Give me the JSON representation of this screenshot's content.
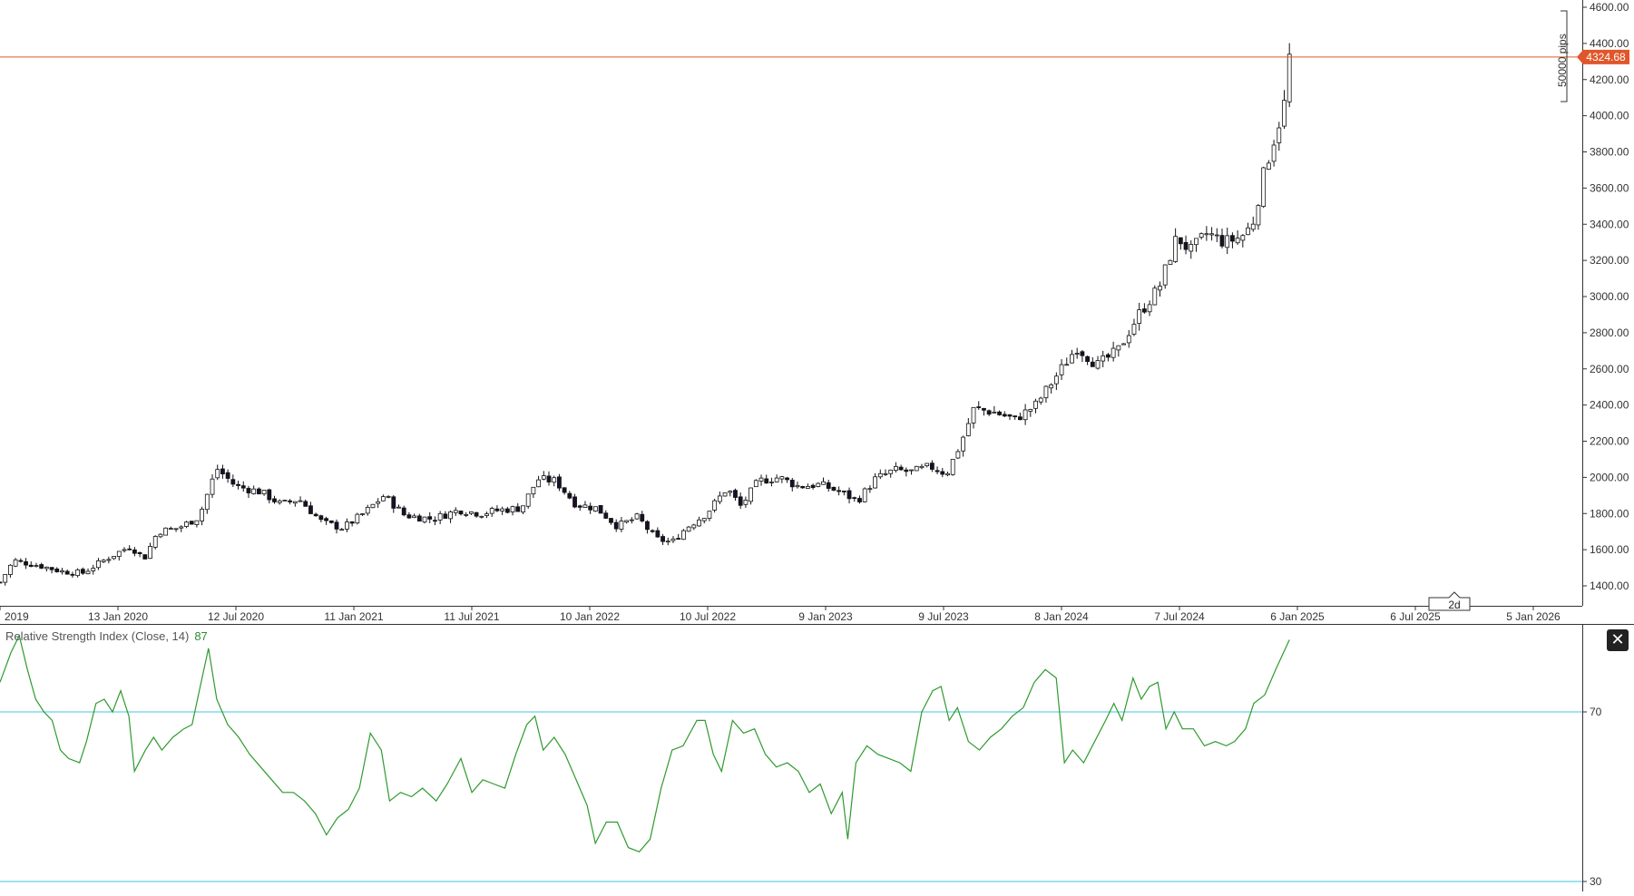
{
  "chart_data": [
    {
      "type": "candlestick",
      "title": "",
      "ylim": [
        1300,
        4620
      ],
      "y_ticks": [
        "1400.00",
        "1600.00",
        "1800.00",
        "2000.00",
        "2200.00",
        "2400.00",
        "2600.00",
        "2800.00",
        "3000.00",
        "3200.00",
        "3400.00",
        "3600.00",
        "3800.00",
        "4000.00",
        "4200.00",
        "4400.00",
        "4600.00"
      ],
      "x_ticks": [
        "2019",
        "13 Jan 2020",
        "12 Jul 2020",
        "11 Jan 2021",
        "11 Jul 2021",
        "10 Jan 2022",
        "10 Jul 2022",
        "9 Jan 2023",
        "9 Jul 2023",
        "8 Jan 2024",
        "7 Jul 2024",
        "6 Jan 2025",
        "6 Jul 2025",
        "5 Jan 2026"
      ],
      "timeframe": "2d",
      "current_price": 4324.68,
      "current_price_label": "4324.68",
      "range_label": "50000 pips",
      "close_path": [
        {
          "t": 0.0,
          "v": 1420
        },
        {
          "t": 0.01,
          "v": 1540
        },
        {
          "t": 0.03,
          "v": 1510
        },
        {
          "t": 0.045,
          "v": 1480
        },
        {
          "t": 0.06,
          "v": 1470
        },
        {
          "t": 0.08,
          "v": 1560
        },
        {
          "t": 0.095,
          "v": 1620
        },
        {
          "t": 0.105,
          "v": 1550
        },
        {
          "t": 0.115,
          "v": 1700
        },
        {
          "t": 0.13,
          "v": 1720
        },
        {
          "t": 0.145,
          "v": 1780
        },
        {
          "t": 0.158,
          "v": 2050
        },
        {
          "t": 0.172,
          "v": 1950
        },
        {
          "t": 0.19,
          "v": 1920
        },
        {
          "t": 0.205,
          "v": 1850
        },
        {
          "t": 0.218,
          "v": 1880
        },
        {
          "t": 0.235,
          "v": 1750
        },
        {
          "t": 0.25,
          "v": 1720
        },
        {
          "t": 0.265,
          "v": 1800
        },
        {
          "t": 0.28,
          "v": 1900
        },
        {
          "t": 0.295,
          "v": 1790
        },
        {
          "t": 0.315,
          "v": 1770
        },
        {
          "t": 0.335,
          "v": 1820
        },
        {
          "t": 0.35,
          "v": 1800
        },
        {
          "t": 0.365,
          "v": 1820
        },
        {
          "t": 0.38,
          "v": 1830
        },
        {
          "t": 0.392,
          "v": 1990
        },
        {
          "t": 0.405,
          "v": 1980
        },
        {
          "t": 0.42,
          "v": 1850
        },
        {
          "t": 0.435,
          "v": 1830
        },
        {
          "t": 0.45,
          "v": 1730
        },
        {
          "t": 0.465,
          "v": 1780
        },
        {
          "t": 0.478,
          "v": 1660
        },
        {
          "t": 0.49,
          "v": 1640
        },
        {
          "t": 0.5,
          "v": 1720
        },
        {
          "t": 0.515,
          "v": 1800
        },
        {
          "t": 0.53,
          "v": 1940
        },
        {
          "t": 0.54,
          "v": 1840
        },
        {
          "t": 0.553,
          "v": 1980
        },
        {
          "t": 0.568,
          "v": 2000
        },
        {
          "t": 0.582,
          "v": 1950
        },
        {
          "t": 0.598,
          "v": 1960
        },
        {
          "t": 0.612,
          "v": 1920
        },
        {
          "t": 0.625,
          "v": 1870
        },
        {
          "t": 0.638,
          "v": 1990
        },
        {
          "t": 0.652,
          "v": 2040
        },
        {
          "t": 0.665,
          "v": 2030
        },
        {
          "t": 0.678,
          "v": 2060
        },
        {
          "t": 0.69,
          "v": 2020
        },
        {
          "t": 0.7,
          "v": 2180
        },
        {
          "t": 0.71,
          "v": 2380
        },
        {
          "t": 0.725,
          "v": 2360
        },
        {
          "t": 0.74,
          "v": 2320
        },
        {
          "t": 0.755,
          "v": 2400
        },
        {
          "t": 0.77,
          "v": 2560
        },
        {
          "t": 0.785,
          "v": 2720
        },
        {
          "t": 0.8,
          "v": 2620
        },
        {
          "t": 0.815,
          "v": 2700
        },
        {
          "t": 0.83,
          "v": 2900
        },
        {
          "t": 0.845,
          "v": 3050
        },
        {
          "t": 0.858,
          "v": 3330
        },
        {
          "t": 0.868,
          "v": 3250
        },
        {
          "t": 0.88,
          "v": 3350
        },
        {
          "t": 0.893,
          "v": 3300
        },
        {
          "t": 0.905,
          "v": 3330
        },
        {
          "t": 0.913,
          "v": 3400
        },
        {
          "t": 0.922,
          "v": 3700
        },
        {
          "t": 0.93,
          "v": 3900
        },
        {
          "t": 0.936,
          "v": 4050
        },
        {
          "t": 0.94,
          "v": 4324.68
        }
      ]
    },
    {
      "type": "line",
      "title": "Relative Strength Index (Close, 14)",
      "last_value": "87",
      "ylim": [
        30,
        92
      ],
      "levels": [
        70,
        30
      ],
      "level_labels": [
        "70",
        "30"
      ],
      "series": [
        {
          "values": [
            {
              "t": 0.0,
              "v": 77
            },
            {
              "t": 0.008,
              "v": 84
            },
            {
              "t": 0.014,
              "v": 88
            },
            {
              "t": 0.02,
              "v": 80
            },
            {
              "t": 0.026,
              "v": 73
            },
            {
              "t": 0.032,
              "v": 70
            },
            {
              "t": 0.038,
              "v": 68
            },
            {
              "t": 0.044,
              "v": 61
            },
            {
              "t": 0.05,
              "v": 59
            },
            {
              "t": 0.058,
              "v": 58
            },
            {
              "t": 0.063,
              "v": 63
            },
            {
              "t": 0.07,
              "v": 72
            },
            {
              "t": 0.076,
              "v": 73
            },
            {
              "t": 0.082,
              "v": 70
            },
            {
              "t": 0.088,
              "v": 75
            },
            {
              "t": 0.094,
              "v": 69
            },
            {
              "t": 0.098,
              "v": 56
            },
            {
              "t": 0.106,
              "v": 61
            },
            {
              "t": 0.112,
              "v": 64
            },
            {
              "t": 0.118,
              "v": 61
            },
            {
              "t": 0.126,
              "v": 64
            },
            {
              "t": 0.134,
              "v": 66
            },
            {
              "t": 0.14,
              "v": 67
            },
            {
              "t": 0.146,
              "v": 76
            },
            {
              "t": 0.152,
              "v": 85
            },
            {
              "t": 0.158,
              "v": 73
            },
            {
              "t": 0.166,
              "v": 67
            },
            {
              "t": 0.174,
              "v": 64
            },
            {
              "t": 0.182,
              "v": 60
            },
            {
              "t": 0.19,
              "v": 57
            },
            {
              "t": 0.198,
              "v": 54
            },
            {
              "t": 0.206,
              "v": 51
            },
            {
              "t": 0.214,
              "v": 51
            },
            {
              "t": 0.222,
              "v": 49
            },
            {
              "t": 0.23,
              "v": 46
            },
            {
              "t": 0.238,
              "v": 41
            },
            {
              "t": 0.246,
              "v": 45
            },
            {
              "t": 0.254,
              "v": 47
            },
            {
              "t": 0.262,
              "v": 52
            },
            {
              "t": 0.27,
              "v": 65
            },
            {
              "t": 0.278,
              "v": 61
            },
            {
              "t": 0.284,
              "v": 49
            },
            {
              "t": 0.292,
              "v": 51
            },
            {
              "t": 0.3,
              "v": 50
            },
            {
              "t": 0.308,
              "v": 52
            },
            {
              "t": 0.318,
              "v": 49
            },
            {
              "t": 0.326,
              "v": 53
            },
            {
              "t": 0.336,
              "v": 59
            },
            {
              "t": 0.344,
              "v": 51
            },
            {
              "t": 0.352,
              "v": 54
            },
            {
              "t": 0.36,
              "v": 53
            },
            {
              "t": 0.368,
              "v": 52
            },
            {
              "t": 0.376,
              "v": 60
            },
            {
              "t": 0.384,
              "v": 67
            },
            {
              "t": 0.39,
              "v": 69
            },
            {
              "t": 0.396,
              "v": 61
            },
            {
              "t": 0.404,
              "v": 64
            },
            {
              "t": 0.412,
              "v": 60
            },
            {
              "t": 0.42,
              "v": 54
            },
            {
              "t": 0.428,
              "v": 48
            },
            {
              "t": 0.434,
              "v": 39
            },
            {
              "t": 0.442,
              "v": 44
            },
            {
              "t": 0.45,
              "v": 44
            },
            {
              "t": 0.458,
              "v": 38
            },
            {
              "t": 0.466,
              "v": 37
            },
            {
              "t": 0.474,
              "v": 40
            },
            {
              "t": 0.482,
              "v": 52
            },
            {
              "t": 0.49,
              "v": 61
            },
            {
              "t": 0.498,
              "v": 62
            },
            {
              "t": 0.508,
              "v": 68
            },
            {
              "t": 0.514,
              "v": 68
            },
            {
              "t": 0.52,
              "v": 60
            },
            {
              "t": 0.526,
              "v": 56
            },
            {
              "t": 0.534,
              "v": 68
            },
            {
              "t": 0.542,
              "v": 65
            },
            {
              "t": 0.55,
              "v": 66
            },
            {
              "t": 0.558,
              "v": 60
            },
            {
              "t": 0.566,
              "v": 57
            },
            {
              "t": 0.574,
              "v": 58
            },
            {
              "t": 0.582,
              "v": 56
            },
            {
              "t": 0.59,
              "v": 51
            },
            {
              "t": 0.598,
              "v": 53
            },
            {
              "t": 0.606,
              "v": 46
            },
            {
              "t": 0.614,
              "v": 51
            },
            {
              "t": 0.618,
              "v": 40
            },
            {
              "t": 0.624,
              "v": 58
            },
            {
              "t": 0.632,
              "v": 62
            },
            {
              "t": 0.64,
              "v": 60
            },
            {
              "t": 0.648,
              "v": 59
            },
            {
              "t": 0.656,
              "v": 58
            },
            {
              "t": 0.664,
              "v": 56
            },
            {
              "t": 0.672,
              "v": 70
            },
            {
              "t": 0.68,
              "v": 75
            },
            {
              "t": 0.686,
              "v": 76
            },
            {
              "t": 0.692,
              "v": 68
            },
            {
              "t": 0.698,
              "v": 71
            },
            {
              "t": 0.706,
              "v": 63
            },
            {
              "t": 0.714,
              "v": 61
            },
            {
              "t": 0.722,
              "v": 64
            },
            {
              "t": 0.73,
              "v": 66
            },
            {
              "t": 0.738,
              "v": 69
            },
            {
              "t": 0.746,
              "v": 71
            },
            {
              "t": 0.754,
              "v": 77
            },
            {
              "t": 0.762,
              "v": 80
            },
            {
              "t": 0.77,
              "v": 78
            },
            {
              "t": 0.776,
              "v": 58
            },
            {
              "t": 0.782,
              "v": 61
            },
            {
              "t": 0.79,
              "v": 58
            },
            {
              "t": 0.798,
              "v": 63
            },
            {
              "t": 0.806,
              "v": 68
            },
            {
              "t": 0.812,
              "v": 72
            },
            {
              "t": 0.818,
              "v": 68
            },
            {
              "t": 0.826,
              "v": 78
            },
            {
              "t": 0.832,
              "v": 73
            },
            {
              "t": 0.838,
              "v": 76
            },
            {
              "t": 0.844,
              "v": 77
            },
            {
              "t": 0.85,
              "v": 66
            },
            {
              "t": 0.856,
              "v": 70
            },
            {
              "t": 0.862,
              "v": 66
            },
            {
              "t": 0.87,
              "v": 66
            },
            {
              "t": 0.878,
              "v": 62
            },
            {
              "t": 0.886,
              "v": 63
            },
            {
              "t": 0.894,
              "v": 62
            },
            {
              "t": 0.9,
              "v": 63
            },
            {
              "t": 0.908,
              "v": 66
            },
            {
              "t": 0.914,
              "v": 72
            },
            {
              "t": 0.922,
              "v": 74
            },
            {
              "t": 0.93,
              "v": 80
            },
            {
              "t": 0.94,
              "v": 87
            }
          ]
        }
      ]
    }
  ]
}
